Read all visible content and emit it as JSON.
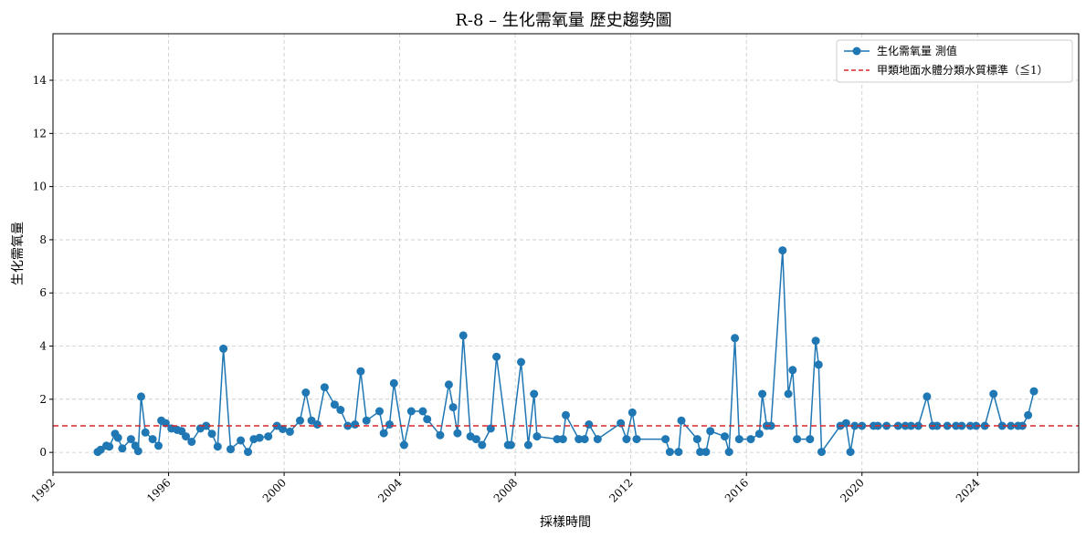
{
  "chart_data": {
    "type": "line",
    "title": "R-8 – 生化需氧量 歷史趨勢圖",
    "xlabel": "採樣時間",
    "ylabel": "生化需氧量",
    "xlim": [
      1992.0,
      2027.5
    ],
    "ylim": [
      -0.75,
      15.75
    ],
    "x_ticks": [
      1992,
      1996,
      2000,
      2004,
      2008,
      2012,
      2016,
      2020,
      2024
    ],
    "y_ticks": [
      0,
      2,
      4,
      6,
      8,
      10,
      12,
      14
    ],
    "grid": true,
    "legend_position": "top-right",
    "series": [
      {
        "name": "生化需氧量 測值",
        "color": "#1f77b4",
        "marker": "circle",
        "x": [
          1993.55,
          1993.65,
          1993.85,
          1993.95,
          1994.15,
          1994.25,
          1994.4,
          1994.7,
          1994.85,
          1994.95,
          1995.05,
          1995.2,
          1995.45,
          1995.65,
          1995.75,
          1995.9,
          1996.1,
          1996.3,
          1996.45,
          1996.6,
          1996.8,
          1997.1,
          1997.3,
          1997.5,
          1997.7,
          1997.9,
          1998.15,
          1998.5,
          1998.75,
          1998.95,
          1999.15,
          1999.45,
          1999.75,
          1999.95,
          2000.2,
          2000.55,
          2000.75,
          2000.95,
          2001.15,
          2001.4,
          2001.75,
          2001.95,
          2002.2,
          2002.45,
          2002.65,
          2002.85,
          2003.3,
          2003.45,
          2003.65,
          2003.8,
          2004.15,
          2004.4,
          2004.8,
          2004.95,
          2005.4,
          2005.7,
          2005.85,
          2006.0,
          2006.2,
          2006.45,
          2006.65,
          2006.85,
          2007.15,
          2007.35,
          2007.75,
          2007.85,
          2008.2,
          2008.45,
          2008.65,
          2008.75,
          2009.45,
          2009.65,
          2009.75,
          2010.2,
          2010.4,
          2010.55,
          2010.85,
          2011.65,
          2011.85,
          2012.05,
          2012.2,
          2013.2,
          2013.35,
          2013.65,
          2013.75,
          2014.3,
          2014.4,
          2014.6,
          2014.75,
          2015.25,
          2015.4,
          2015.6,
          2015.75,
          2016.15,
          2016.45,
          2016.55,
          2016.7,
          2016.85,
          2017.25,
          2017.45,
          2017.6,
          2017.75,
          2018.2,
          2018.4,
          2018.5,
          2018.6,
          2019.25,
          2019.45,
          2019.6,
          2019.75,
          2020.0,
          2020.4,
          2020.55,
          2020.85,
          2021.25,
          2021.5,
          2021.7,
          2021.95,
          2022.25,
          2022.45,
          2022.6,
          2022.95,
          2023.25,
          2023.45,
          2023.75,
          2023.95,
          2024.25,
          2024.55,
          2024.85,
          2025.15,
          2025.4,
          2025.55,
          2025.75,
          2025.95
        ],
        "y": [
          0.02,
          0.1,
          0.25,
          0.22,
          0.7,
          0.55,
          0.15,
          0.5,
          0.25,
          0.05,
          2.1,
          0.75,
          0.5,
          0.25,
          1.2,
          1.1,
          0.9,
          0.85,
          0.8,
          0.6,
          0.4,
          0.9,
          1.0,
          0.7,
          0.22,
          3.9,
          0.12,
          0.45,
          0.02,
          0.5,
          0.55,
          0.6,
          1.0,
          0.88,
          0.78,
          1.2,
          2.25,
          1.2,
          1.05,
          2.45,
          1.8,
          1.6,
          1.0,
          1.05,
          3.05,
          1.2,
          1.55,
          0.72,
          1.05,
          2.6,
          0.28,
          1.55,
          1.55,
          1.25,
          0.65,
          2.55,
          1.7,
          0.72,
          4.4,
          0.6,
          0.5,
          0.28,
          0.9,
          3.6,
          0.28,
          0.28,
          3.4,
          0.28,
          2.2,
          0.6,
          0.5,
          0.5,
          1.4,
          0.5,
          0.5,
          1.05,
          0.5,
          1.1,
          0.5,
          1.5,
          0.5,
          0.5,
          0.02,
          0.02,
          1.2,
          0.5,
          0.02,
          0.02,
          0.8,
          0.6,
          0.02,
          4.3,
          0.5,
          0.5,
          0.7,
          2.2,
          1.0,
          1.0,
          7.6,
          2.2,
          3.1,
          0.5,
          0.5,
          4.2,
          3.3,
          0.02,
          1.0,
          1.1,
          0.02,
          1.0,
          1.0,
          1.0,
          1.0,
          1.0,
          1.0,
          1.0,
          1.0,
          1.0,
          2.1,
          1.0,
          1.0,
          1.0,
          1.0,
          1.0,
          1.0,
          1.0,
          1.0,
          2.2,
          1.0,
          1.0,
          1.0,
          1.0,
          1.4,
          2.3
        ]
      },
      {
        "name": "甲類地面水體分類水質標準（≦1）",
        "color": "#d62728",
        "style": "dashed",
        "y_const": 1
      }
    ]
  }
}
